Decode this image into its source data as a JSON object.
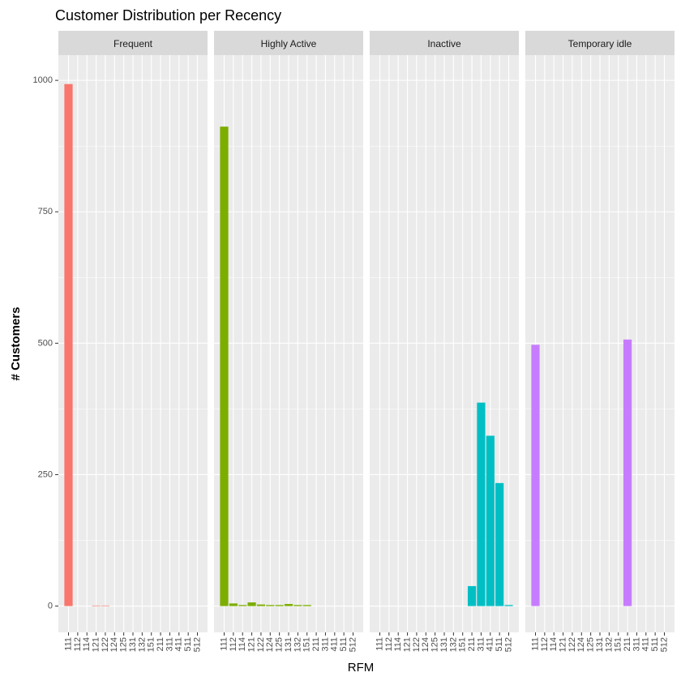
{
  "chart_data": {
    "type": "bar",
    "title": "Customer Distribution per Recency",
    "x_label": "RFM",
    "y_label": "# Customers",
    "categories": [
      "111",
      "112",
      "114",
      "121",
      "122",
      "124",
      "125",
      "131",
      "132",
      "151",
      "211",
      "311",
      "411",
      "511",
      "512"
    ],
    "series": [
      {
        "name": "Frequent",
        "color": "#F8766D",
        "values": [
          993,
          null,
          null,
          1,
          1,
          null,
          null,
          null,
          null,
          null,
          null,
          null,
          null,
          null,
          null
        ]
      },
      {
        "name": "Highly Active",
        "color": "#7CAE00",
        "values": [
          912,
          5,
          2,
          7,
          3,
          2,
          2,
          4,
          2,
          2,
          null,
          null,
          null,
          null,
          null
        ]
      },
      {
        "name": "Inactive",
        "color": "#00BFC4",
        "values": [
          null,
          null,
          null,
          null,
          null,
          null,
          null,
          null,
          null,
          null,
          38,
          387,
          324,
          234,
          2
        ]
      },
      {
        "name": "Temporary idle",
        "color": "#C77CFF",
        "values": [
          497,
          null,
          null,
          null,
          null,
          null,
          null,
          null,
          null,
          null,
          507,
          null,
          null,
          null,
          null
        ]
      }
    ],
    "ylim": [
      -50,
      1048
    ],
    "yticks": [
      0,
      250,
      500,
      750,
      1000
    ],
    "grid": true
  }
}
